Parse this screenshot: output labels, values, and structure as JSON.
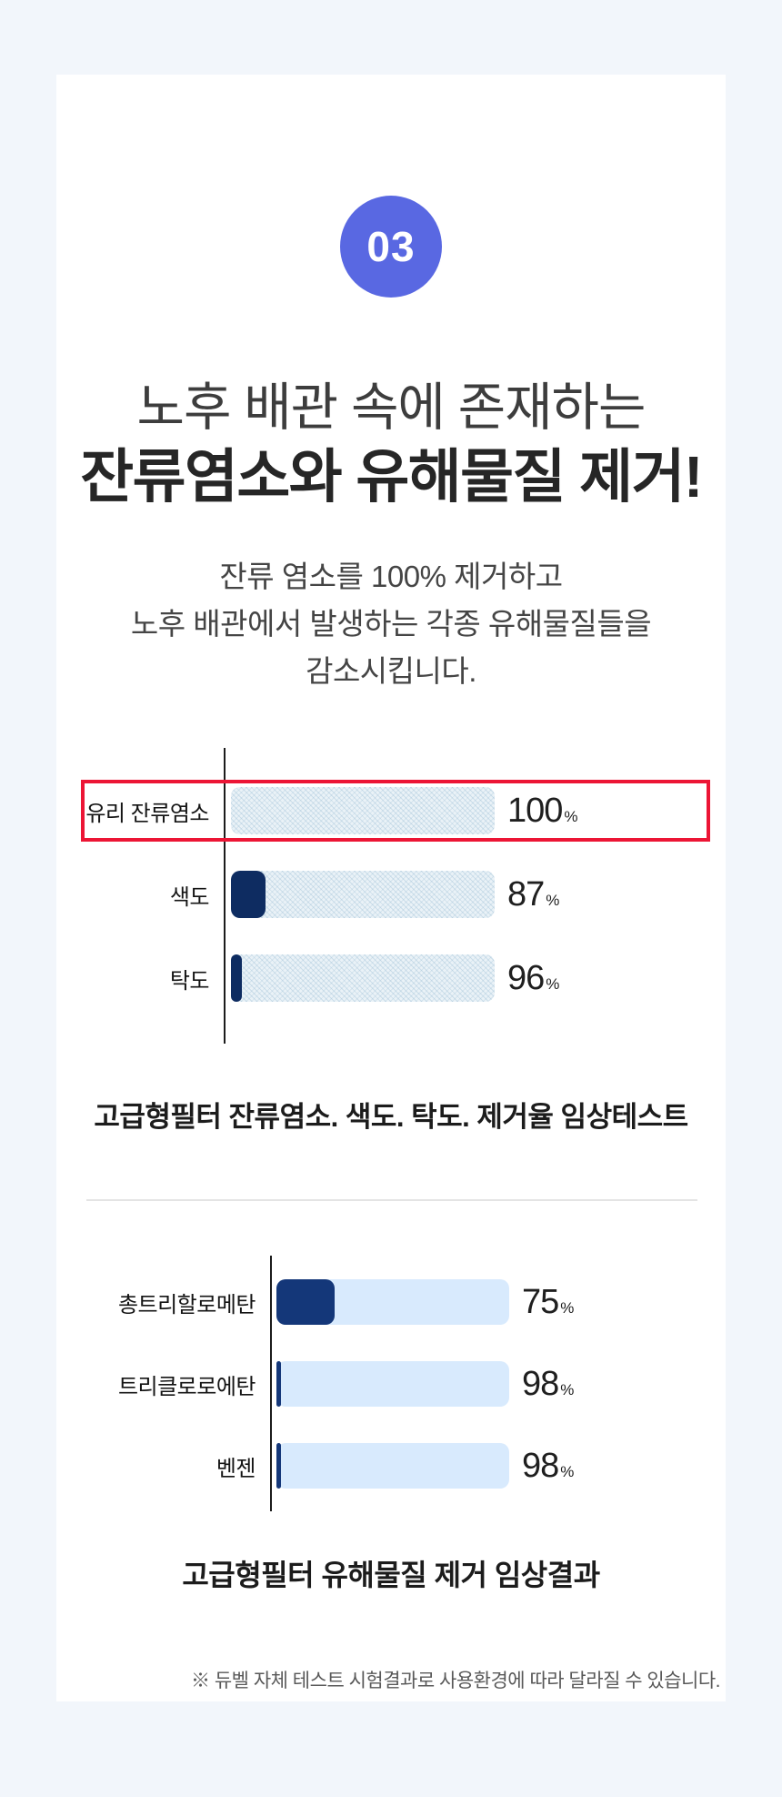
{
  "page": {
    "background_color": "#f2f6fb",
    "card_color": "#ffffff"
  },
  "badge": {
    "number": "03",
    "background_color": "#5968e2",
    "text_color": "#ffffff"
  },
  "heading": {
    "line1": "노후 배관 속에 존재하는",
    "line2": "잔류염소와 유해물질 제거!"
  },
  "subtitle": {
    "lines": [
      "잔류 염소를 100% 제거하고",
      "노후 배관에서 발생하는 각종 유해물질들을",
      "감소시킵니다."
    ]
  },
  "chart_data": [
    {
      "type": "bar",
      "orientation": "horizontal",
      "categories": [
        "유리 잔류염소",
        "색도",
        "탁도"
      ],
      "values": [
        100,
        87,
        96
      ],
      "unit": "%",
      "title": "고급형필터 잔류염소. 색도. 탁도. 제거율 임상테스트",
      "xlim": [
        0,
        100
      ],
      "grid": false,
      "legend": false,
      "colors": {
        "track": "#eaf2f7",
        "residual": "#0e2c61",
        "pattern": true,
        "axis": "#1c1c1c"
      },
      "highlight": {
        "row": 0,
        "style": "red-outline-box",
        "color": "#ec1535"
      }
    },
    {
      "type": "bar",
      "orientation": "horizontal",
      "categories": [
        "총트리할로메탄",
        "트리클로로에탄",
        "벤젠"
      ],
      "values": [
        75,
        98,
        98
      ],
      "unit": "%",
      "title": "고급형필터 유해물질 제거 임상결과",
      "xlim": [
        0,
        100
      ],
      "grid": false,
      "legend": false,
      "colors": {
        "track": "#d8eafd",
        "residual": "#143779",
        "pattern": false,
        "axis": "#1c1c1c"
      },
      "highlight": null
    }
  ],
  "footnote": "※ 듀벨 자체 테스트 시험결과로 사용환경에 따라 달라질 수 있습니다."
}
